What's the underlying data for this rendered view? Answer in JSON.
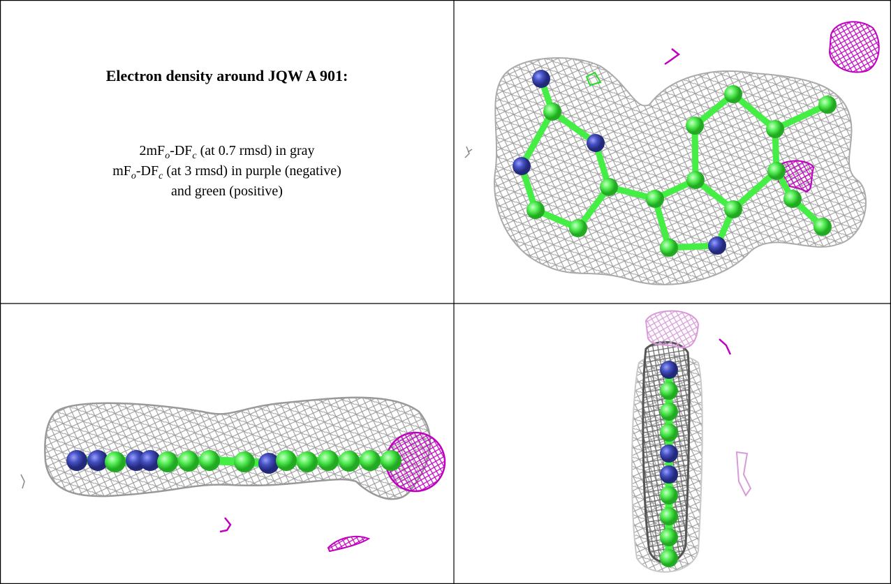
{
  "caption": {
    "title": "Electron density around JQW A 901:",
    "lines": [
      [
        "2mF",
        "o",
        "-DF",
        "c",
        " (at 0.7 rmsd) in gray"
      ],
      [
        "mF",
        "o",
        "-DF",
        "c",
        " (at 3 rmsd) in purple (negative)"
      ],
      [
        "and green (positive)"
      ]
    ]
  }
}
